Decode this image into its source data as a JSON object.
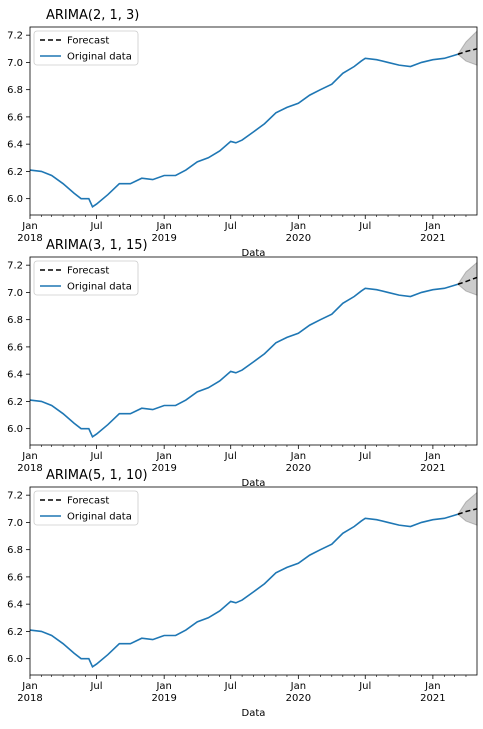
{
  "chart_data": [
    {
      "type": "line",
      "title": "ARIMA(2, 1, 3)",
      "xlabel": "Data",
      "ylabel": "",
      "xlim": [
        "2018-01",
        "2021-05"
      ],
      "ylim": [
        5.88,
        7.26
      ],
      "yticks": [
        "6.0",
        "6.2",
        "6.4",
        "6.6",
        "6.8",
        "7.0",
        "7.2"
      ],
      "xticks": [
        {
          "month": "Jan",
          "year": "2018"
        },
        {
          "month": "Jul",
          "year": ""
        },
        {
          "month": "Jan",
          "year": "2019"
        },
        {
          "month": "Jul",
          "year": ""
        },
        {
          "month": "Jan",
          "year": "2020"
        },
        {
          "month": "Jul",
          "year": ""
        },
        {
          "month": "Jan",
          "year": "2021"
        }
      ],
      "legend": {
        "placement": "upper-left",
        "entries": [
          "Forecast",
          "Original data"
        ]
      },
      "series": [
        {
          "name": "Original data",
          "color": "#1f77b4",
          "x": [
            "2018-01-01",
            "2018-02-01",
            "2018-03-01",
            "2018-04-01",
            "2018-05-01",
            "2018-05-20",
            "2018-06-10",
            "2018-06-20",
            "2018-07-01",
            "2018-08-01",
            "2018-09-01",
            "2018-10-01",
            "2018-11-01",
            "2018-12-01",
            "2019-01-01",
            "2019-02-01",
            "2019-03-01",
            "2019-04-01",
            "2019-05-01",
            "2019-06-01",
            "2019-07-01",
            "2019-07-15",
            "2019-08-01",
            "2019-09-01",
            "2019-10-01",
            "2019-11-01",
            "2019-12-01",
            "2020-01-01",
            "2020-02-01",
            "2020-03-01",
            "2020-04-01",
            "2020-05-01",
            "2020-06-01",
            "2020-06-20",
            "2020-07-01",
            "2020-08-01",
            "2020-09-01",
            "2020-10-01",
            "2020-11-01",
            "2020-12-01",
            "2021-01-01",
            "2021-02-01",
            "2021-03-10"
          ],
          "y": [
            6.21,
            6.2,
            6.17,
            6.11,
            6.04,
            6.0,
            6.0,
            5.94,
            5.96,
            6.03,
            6.11,
            6.11,
            6.15,
            6.14,
            6.17,
            6.17,
            6.21,
            6.27,
            6.3,
            6.35,
            6.42,
            6.41,
            6.43,
            6.49,
            6.55,
            6.63,
            6.67,
            6.7,
            6.76,
            6.8,
            6.84,
            6.92,
            6.97,
            7.01,
            7.03,
            7.02,
            7.0,
            6.98,
            6.97,
            7.0,
            7.02,
            7.03,
            7.06
          ]
        },
        {
          "name": "Forecast",
          "color": "#000000",
          "x": [
            "2021-03-10",
            "2021-04-01",
            "2021-05-01"
          ],
          "y": [
            7.06,
            7.08,
            7.1
          ],
          "ci_upper": [
            7.06,
            7.15,
            7.23
          ],
          "ci_lower": [
            7.06,
            7.01,
            6.98
          ]
        }
      ]
    },
    {
      "type": "line",
      "title": "ARIMA(3, 1, 15)",
      "xlabel": "Data",
      "ylabel": "",
      "xlim": [
        "2018-01",
        "2021-05"
      ],
      "ylim": [
        5.88,
        7.26
      ],
      "yticks": [
        "6.0",
        "6.2",
        "6.4",
        "6.6",
        "6.8",
        "7.0",
        "7.2"
      ],
      "xticks": [
        {
          "month": "Jan",
          "year": "2018"
        },
        {
          "month": "Jul",
          "year": ""
        },
        {
          "month": "Jan",
          "year": "2019"
        },
        {
          "month": "Jul",
          "year": ""
        },
        {
          "month": "Jan",
          "year": "2020"
        },
        {
          "month": "Jul",
          "year": ""
        },
        {
          "month": "Jan",
          "year": "2021"
        }
      ],
      "legend": {
        "placement": "upper-left",
        "entries": [
          "Forecast",
          "Original data"
        ]
      },
      "series": [
        {
          "name": "Original data",
          "color": "#1f77b4",
          "x": [
            "2018-01-01",
            "2018-02-01",
            "2018-03-01",
            "2018-04-01",
            "2018-05-01",
            "2018-05-20",
            "2018-06-10",
            "2018-06-20",
            "2018-07-01",
            "2018-08-01",
            "2018-09-01",
            "2018-10-01",
            "2018-11-01",
            "2018-12-01",
            "2019-01-01",
            "2019-02-01",
            "2019-03-01",
            "2019-04-01",
            "2019-05-01",
            "2019-06-01",
            "2019-07-01",
            "2019-07-15",
            "2019-08-01",
            "2019-09-01",
            "2019-10-01",
            "2019-11-01",
            "2019-12-01",
            "2020-01-01",
            "2020-02-01",
            "2020-03-01",
            "2020-04-01",
            "2020-05-01",
            "2020-06-01",
            "2020-06-20",
            "2020-07-01",
            "2020-08-01",
            "2020-09-01",
            "2020-10-01",
            "2020-11-01",
            "2020-12-01",
            "2021-01-01",
            "2021-02-01",
            "2021-03-10"
          ],
          "y": [
            6.21,
            6.2,
            6.17,
            6.11,
            6.04,
            6.0,
            6.0,
            5.94,
            5.96,
            6.03,
            6.11,
            6.11,
            6.15,
            6.14,
            6.17,
            6.17,
            6.21,
            6.27,
            6.3,
            6.35,
            6.42,
            6.41,
            6.43,
            6.49,
            6.55,
            6.63,
            6.67,
            6.7,
            6.76,
            6.8,
            6.84,
            6.92,
            6.97,
            7.01,
            7.03,
            7.02,
            7.0,
            6.98,
            6.97,
            7.0,
            7.02,
            7.03,
            7.06
          ]
        },
        {
          "name": "Forecast",
          "color": "#000000",
          "x": [
            "2021-03-10",
            "2021-04-01",
            "2021-05-01"
          ],
          "y": [
            7.06,
            7.08,
            7.11
          ],
          "ci_upper": [
            7.06,
            7.15,
            7.22
          ],
          "ci_lower": [
            7.06,
            7.01,
            6.98
          ]
        }
      ]
    },
    {
      "type": "line",
      "title": "ARIMA(5, 1, 10)",
      "xlabel": "Data",
      "ylabel": "",
      "xlim": [
        "2018-01",
        "2021-05"
      ],
      "ylim": [
        5.88,
        7.26
      ],
      "yticks": [
        "6.0",
        "6.2",
        "6.4",
        "6.6",
        "6.8",
        "7.0",
        "7.2"
      ],
      "xticks": [
        {
          "month": "Jan",
          "year": "2018"
        },
        {
          "month": "Jul",
          "year": ""
        },
        {
          "month": "Jan",
          "year": "2019"
        },
        {
          "month": "Jul",
          "year": ""
        },
        {
          "month": "Jan",
          "year": "2020"
        },
        {
          "month": "Jul",
          "year": ""
        },
        {
          "month": "Jan",
          "year": "2021"
        }
      ],
      "legend": {
        "placement": "upper-left",
        "entries": [
          "Forecast",
          "Original data"
        ]
      },
      "series": [
        {
          "name": "Original data",
          "color": "#1f77b4",
          "x": [
            "2018-01-01",
            "2018-02-01",
            "2018-03-01",
            "2018-04-01",
            "2018-05-01",
            "2018-05-20",
            "2018-06-10",
            "2018-06-20",
            "2018-07-01",
            "2018-08-01",
            "2018-09-01",
            "2018-10-01",
            "2018-11-01",
            "2018-12-01",
            "2019-01-01",
            "2019-02-01",
            "2019-03-01",
            "2019-04-01",
            "2019-05-01",
            "2019-06-01",
            "2019-07-01",
            "2019-07-15",
            "2019-08-01",
            "2019-09-01",
            "2019-10-01",
            "2019-11-01",
            "2019-12-01",
            "2020-01-01",
            "2020-02-01",
            "2020-03-01",
            "2020-04-01",
            "2020-05-01",
            "2020-06-01",
            "2020-06-20",
            "2020-07-01",
            "2020-08-01",
            "2020-09-01",
            "2020-10-01",
            "2020-11-01",
            "2020-12-01",
            "2021-01-01",
            "2021-02-01",
            "2021-03-10"
          ],
          "y": [
            6.21,
            6.2,
            6.17,
            6.11,
            6.04,
            6.0,
            6.0,
            5.94,
            5.96,
            6.03,
            6.11,
            6.11,
            6.15,
            6.14,
            6.17,
            6.17,
            6.21,
            6.27,
            6.3,
            6.35,
            6.42,
            6.41,
            6.43,
            6.49,
            6.55,
            6.63,
            6.67,
            6.7,
            6.76,
            6.8,
            6.84,
            6.92,
            6.97,
            7.01,
            7.03,
            7.02,
            7.0,
            6.98,
            6.97,
            7.0,
            7.02,
            7.03,
            7.06
          ]
        },
        {
          "name": "Forecast",
          "color": "#000000",
          "x": [
            "2021-03-10",
            "2021-04-01",
            "2021-05-01"
          ],
          "y": [
            7.06,
            7.08,
            7.1
          ],
          "ci_upper": [
            7.06,
            7.15,
            7.22
          ],
          "ci_lower": [
            7.06,
            7.01,
            6.98
          ]
        }
      ]
    }
  ]
}
